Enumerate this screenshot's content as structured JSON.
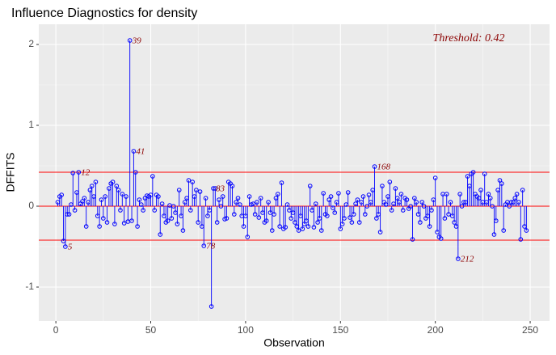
{
  "chart_data": {
    "type": "stem",
    "title": "Influence Diagnostics for density",
    "x_label": "Observation",
    "y_label": "DFFITS",
    "annotation": "Threshold: 0.42",
    "threshold": 0.42,
    "color": "#0000ff",
    "threshold_color": "#ff0000",
    "grid": true,
    "xlim": [
      -9,
      260.2
    ],
    "ylim": [
      -1.42,
      2.25
    ],
    "xticks": [
      0,
      50,
      100,
      150,
      200,
      250
    ],
    "yticks": [
      -1,
      0,
      1,
      2
    ],
    "labeled_points": [
      5,
      12,
      39,
      41,
      78,
      83,
      168,
      212
    ],
    "x": [
      1,
      2,
      3,
      4,
      5,
      6,
      7,
      8,
      9,
      10,
      11,
      12,
      13,
      14,
      15,
      16,
      17,
      18,
      19,
      20,
      21,
      22,
      23,
      24,
      25,
      26,
      27,
      28,
      29,
      30,
      31,
      32,
      33,
      34,
      35,
      36,
      37,
      38,
      39,
      40,
      41,
      42,
      43,
      44,
      45,
      46,
      47,
      48,
      49,
      50,
      51,
      52,
      53,
      54,
      55,
      56,
      57,
      58,
      59,
      60,
      61,
      62,
      63,
      64,
      65,
      66,
      67,
      68,
      69,
      70,
      71,
      72,
      73,
      74,
      75,
      76,
      77,
      78,
      79,
      80,
      81,
      82,
      83,
      84,
      85,
      86,
      87,
      88,
      89,
      90,
      91,
      92,
      93,
      94,
      95,
      96,
      97,
      98,
      99,
      100,
      101,
      102,
      103,
      104,
      105,
      106,
      107,
      108,
      109,
      110,
      111,
      112,
      113,
      114,
      115,
      116,
      117,
      118,
      119,
      120,
      121,
      122,
      123,
      124,
      125,
      126,
      127,
      128,
      129,
      130,
      131,
      132,
      133,
      134,
      135,
      136,
      137,
      138,
      139,
      140,
      141,
      142,
      143,
      144,
      145,
      146,
      147,
      148,
      149,
      150,
      151,
      152,
      153,
      154,
      155,
      156,
      157,
      158,
      159,
      160,
      161,
      162,
      163,
      164,
      165,
      166,
      167,
      168,
      169,
      170,
      171,
      172,
      173,
      174,
      175,
      176,
      177,
      178,
      179,
      180,
      181,
      182,
      183,
      184,
      185,
      186,
      187,
      188,
      189,
      190,
      191,
      192,
      193,
      194,
      195,
      196,
      197,
      198,
      199,
      200,
      201,
      202,
      203,
      204,
      205,
      206,
      207,
      208,
      209,
      210,
      211,
      212,
      213,
      214,
      215,
      216,
      217,
      218,
      219,
      220,
      221,
      222,
      223,
      224,
      225,
      226,
      227,
      228,
      229,
      230,
      231,
      232,
      233,
      234,
      235,
      236,
      237,
      238,
      239,
      240,
      241,
      242,
      243,
      244,
      245,
      246,
      247,
      248
    ],
    "values": [
      0.05,
      0.12,
      0.14,
      -0.43,
      -0.5,
      -0.1,
      -0.1,
      0.02,
      0.41,
      -0.05,
      0.17,
      0.42,
      0.03,
      0.06,
      0.1,
      -0.25,
      0.05,
      0.2,
      0.25,
      0.12,
      0.3,
      -0.12,
      -0.25,
      0.08,
      -0.15,
      0.12,
      -0.2,
      0.22,
      0.28,
      0.3,
      -0.22,
      0.25,
      0.2,
      -0.05,
      0.15,
      -0.21,
      0.12,
      -0.19,
      2.05,
      -0.18,
      0.68,
      0.42,
      -0.25,
      0.08,
      0.02,
      -0.05,
      0.1,
      0.13,
      0.12,
      0.14,
      0.37,
      -0.05,
      0.14,
      0.12,
      -0.35,
      0.03,
      -0.12,
      -0.2,
      -0.18,
      0.01,
      -0.15,
      0.0,
      -0.08,
      -0.22,
      0.2,
      -0.12,
      -0.3,
      0.05,
      0.1,
      0.32,
      -0.05,
      0.3,
      0.12,
      0.2,
      -0.2,
      0.18,
      -0.25,
      -0.49,
      0.1,
      -0.12,
      -0.05,
      -1.24,
      0.22,
      0.22,
      -0.2,
      0.08,
      0.0,
      0.12,
      -0.16,
      -0.15,
      0.3,
      0.28,
      0.25,
      -0.1,
      0.05,
      0.1,
      0.02,
      -0.12,
      -0.25,
      -0.12,
      -0.38,
      0.12,
      0.02,
      0.03,
      -0.1,
      0.05,
      -0.14,
      0.1,
      -0.08,
      -0.2,
      -0.18,
      0.05,
      -0.08,
      -0.3,
      -0.1,
      0.1,
      0.15,
      -0.25,
      0.29,
      -0.28,
      -0.26,
      0.02,
      -0.05,
      -0.15,
      -0.08,
      -0.2,
      -0.25,
      -0.3,
      -0.12,
      -0.28,
      -0.22,
      -0.18,
      -0.25,
      0.25,
      -0.05,
      -0.26,
      0.03,
      -0.2,
      -0.15,
      -0.3,
      0.16,
      -0.1,
      -0.12,
      0.08,
      0.12,
      -0.02,
      -0.08,
      0.05,
      0.16,
      -0.28,
      -0.22,
      -0.15,
      0.02,
      0.17,
      -0.14,
      -0.2,
      -0.1,
      0.03,
      0.08,
      -0.2,
      0.05,
      0.12,
      -0.1,
      0.0,
      0.14,
      0.05,
      0.2,
      0.49,
      -0.15,
      -0.1,
      -0.32,
      0.25,
      0.05,
      0.02,
      0.12,
      0.3,
      -0.05,
      0.03,
      0.22,
      0.1,
      0.05,
      0.15,
      -0.05,
      0.1,
      0.08,
      -0.03,
      0.0,
      -0.41,
      0.1,
      0.05,
      -0.1,
      -0.2,
      0.05,
      0.0,
      -0.15,
      -0.12,
      -0.25,
      -0.05,
      0.08,
      0.35,
      -0.32,
      -0.38,
      -0.4,
      0.15,
      -0.15,
      0.15,
      -0.1,
      0.05,
      -0.12,
      -0.2,
      -0.25,
      -0.65,
      0.15,
      0.0,
      0.05,
      0.05,
      0.37,
      0.25,
      0.4,
      0.42,
      0.15,
      0.12,
      0.1,
      0.2,
      0.05,
      0.4,
      0.05,
      0.15,
      0.1,
      0.0,
      -0.35,
      -0.18,
      0.2,
      0.32,
      0.28,
      -0.3,
      0.02,
      0.05,
      0.0,
      0.05,
      0.05,
      0.1,
      0.15,
      0.05,
      -0.41,
      0.2,
      -0.25,
      -0.3
    ]
  }
}
